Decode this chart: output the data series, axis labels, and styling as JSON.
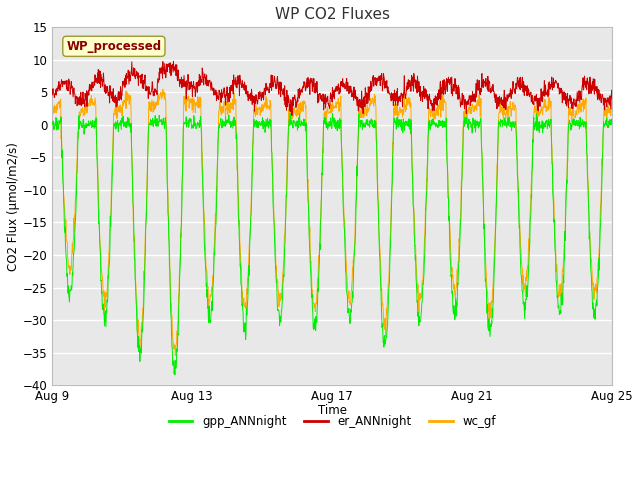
{
  "title": "WP CO2 Fluxes",
  "xlabel": "Time",
  "ylabel": "CO2 Flux (μmol/m2/s)",
  "ylim": [
    -40,
    15
  ],
  "yticks": [
    -40,
    -35,
    -30,
    -25,
    -20,
    -15,
    -10,
    -5,
    0,
    5,
    10,
    15
  ],
  "xtick_labels": [
    "Aug 9",
    "Aug 13",
    "Aug 17",
    "Aug 21",
    "Aug 25"
  ],
  "x_tick_days": [
    0,
    4,
    8,
    12,
    16
  ],
  "fig_bg": "#ffffff",
  "plot_bg": "#e8e8e8",
  "grid_color": "#ffffff",
  "line_colors": {
    "gpp": "#00ee00",
    "er": "#cc0000",
    "wc": "#ffaa00"
  },
  "legend_label": "WP_processed",
  "legend_fg": "#8B0000",
  "legend_bg": "#ffffcc",
  "n_days": 17,
  "pts_per_day": 96,
  "seed": 42,
  "day_gpp_amp": [
    -26,
    -30,
    -35,
    -38,
    -30,
    -31,
    -30,
    -31,
    -30,
    -34,
    -30,
    -29,
    -32,
    -28,
    -29,
    -29,
    -28
  ],
  "day_wc_amp": [
    -22,
    -27,
    -33,
    -35,
    -27,
    -28,
    -27,
    -28,
    -27,
    -31,
    -27,
    -26,
    -29,
    -25,
    -26,
    -26,
    -25
  ],
  "day_er_base": [
    5.0,
    5.5,
    6.5,
    7.5,
    5.5,
    5.0,
    5.0,
    5.0,
    5.0,
    5.5,
    5.0,
    5.0,
    5.0,
    5.0,
    5.0,
    5.0,
    4.5
  ]
}
